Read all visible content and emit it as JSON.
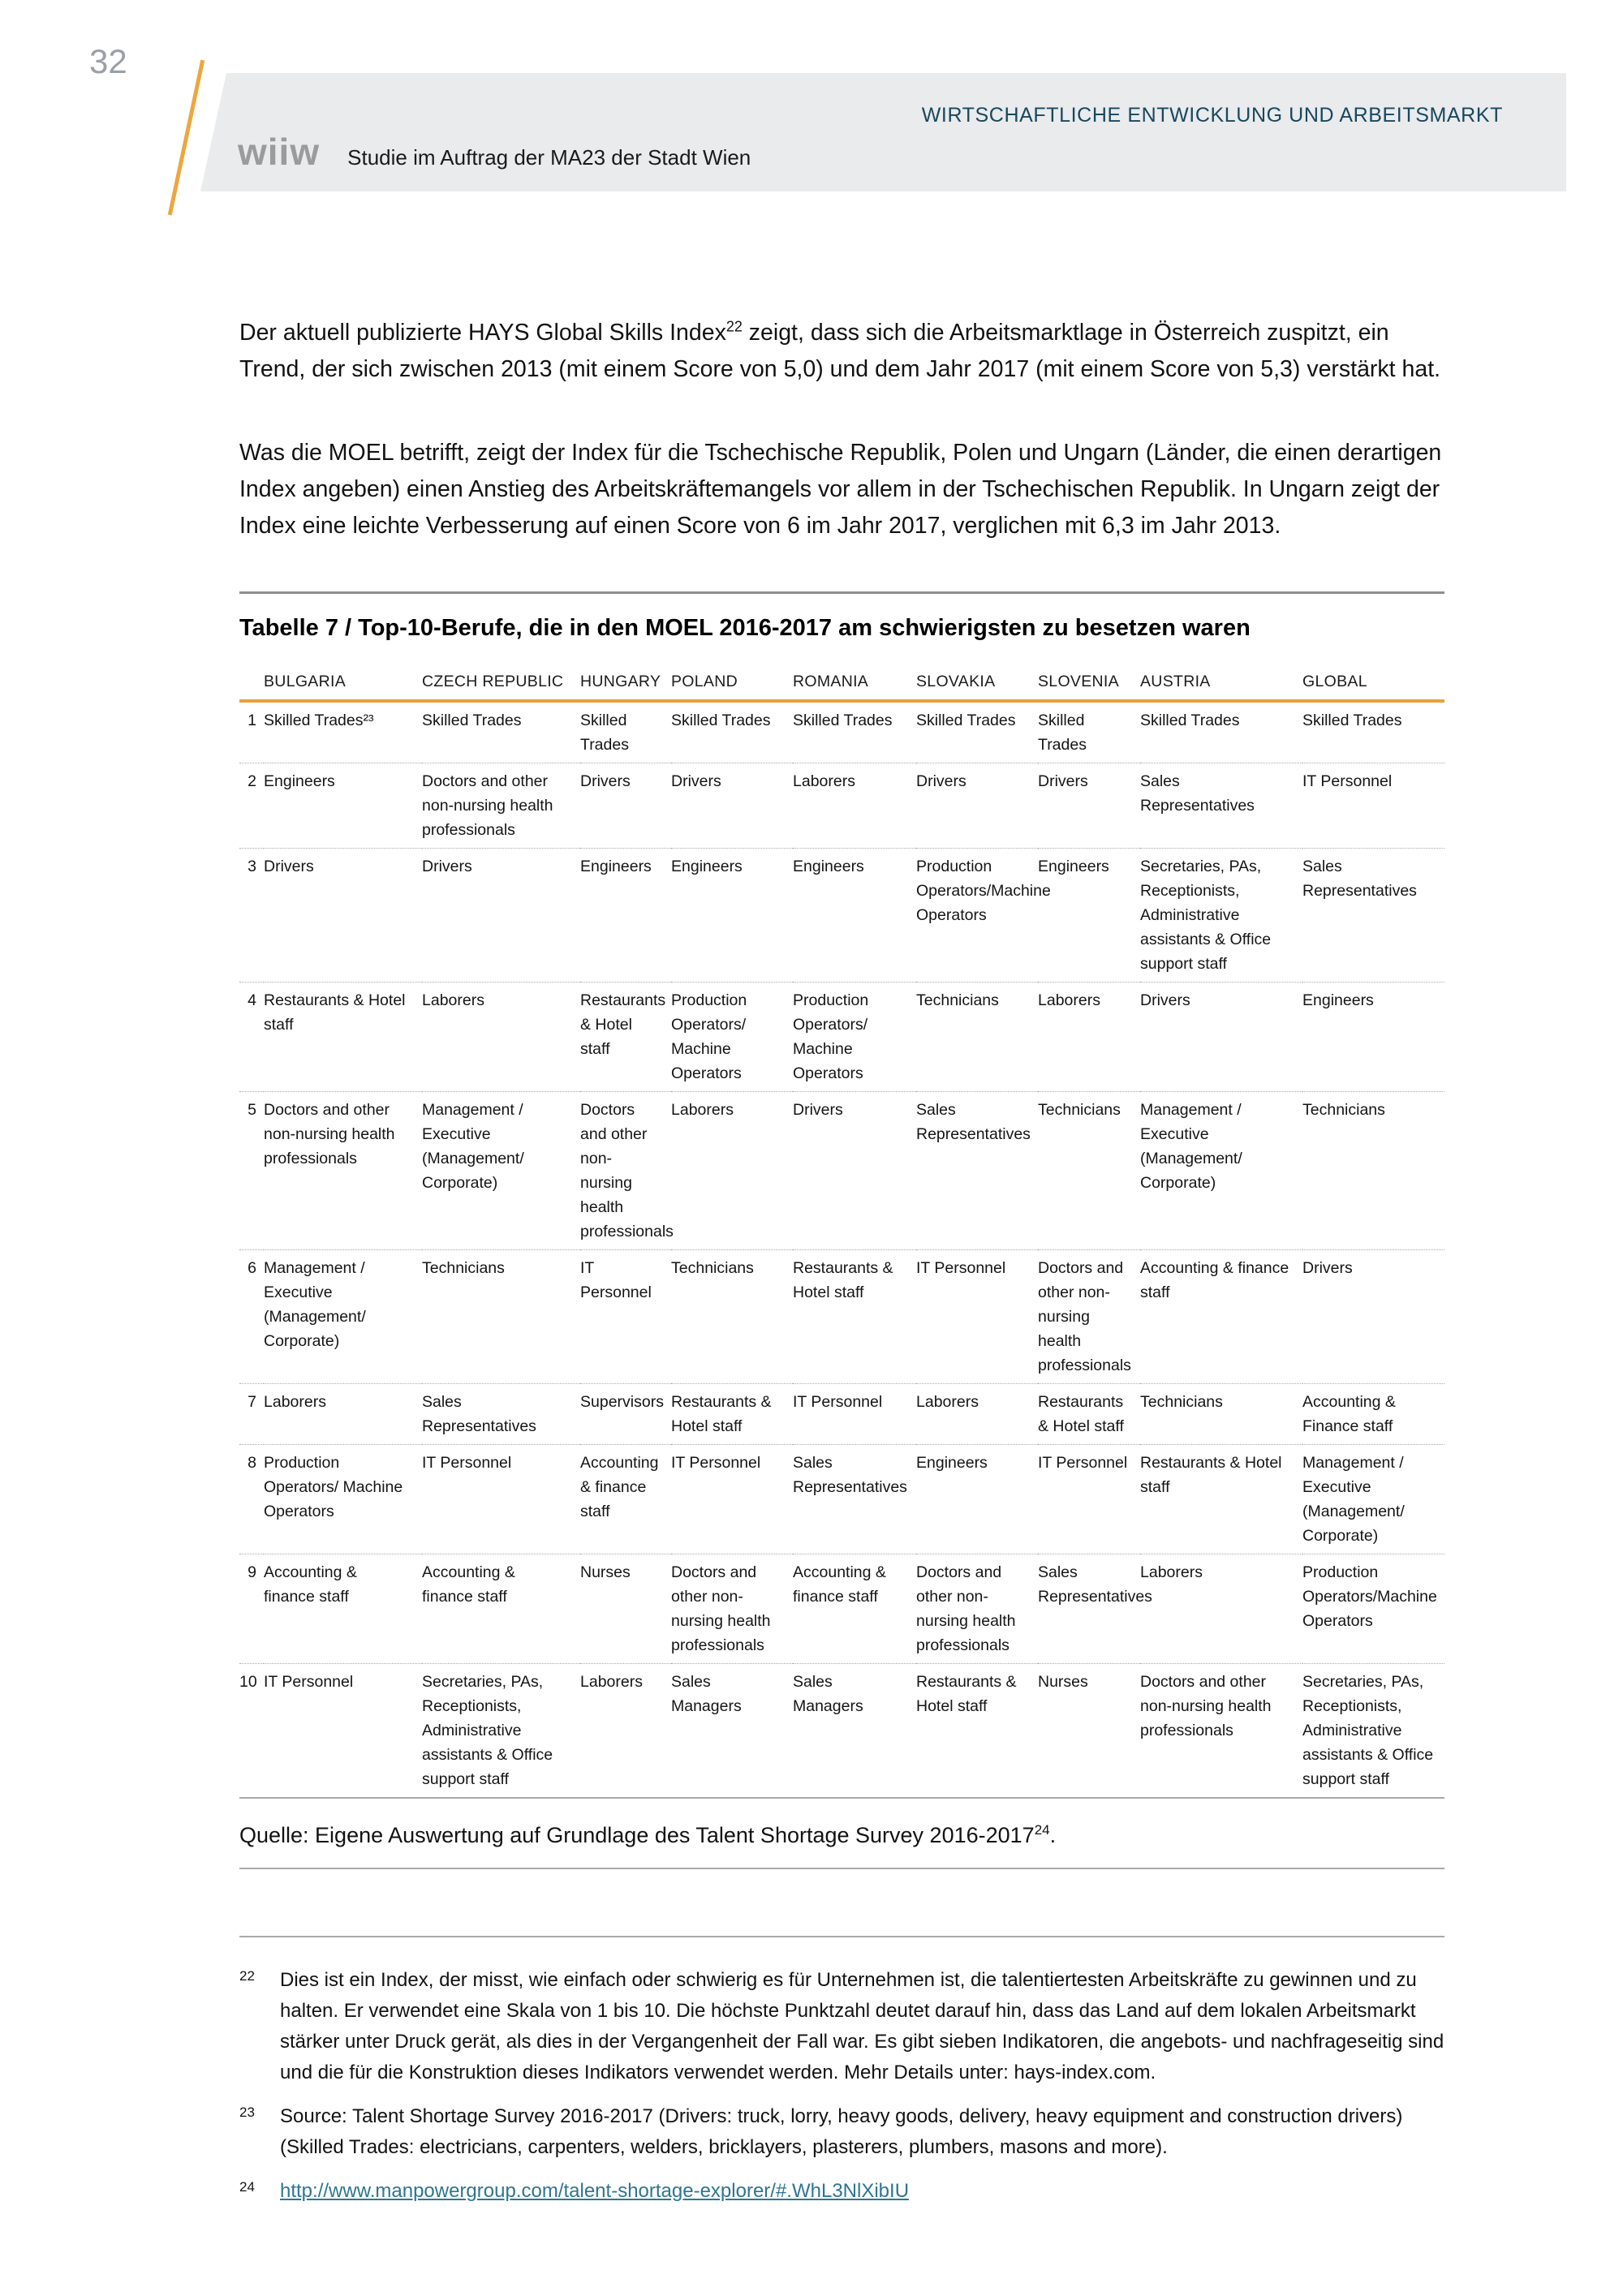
{
  "page": {
    "number": "32",
    "header_title": "WIRTSCHAFTLICHE ENTWICKLUNG UND ARBEITSMARKT",
    "logo_text": "wiiw",
    "subtitle": "Studie im Auftrag der MA23 der Stadt Wien"
  },
  "paragraphs": {
    "p1_before": "Der aktuell publizierte HAYS Global Skills Index",
    "p1_footnote_ref": "22",
    "p1_after": " zeigt, dass sich die Arbeitsmarktlage in Österreich zuspitzt, ein Trend, der sich zwischen 2013 (mit einem Score von 5,0) und dem Jahr 2017 (mit einem Score von 5,3) verstärkt hat.",
    "p2": "Was die MOEL betrifft, zeigt der Index für die Tschechische Republik, Polen und Ungarn (Länder, die einen derartigen Index angeben) einen Anstieg des Arbeitskräftemangels vor allem in der Tschechischen Republik. In Ungarn zeigt der Index eine leichte Verbesserung auf einen Score von 6 im Jahr 2017, verglichen mit 6,3 im Jahr 2013."
  },
  "table": {
    "title": "Tabelle 7 / Top-10-Berufe, die in den MOEL 2016-2017 am schwierigsten zu besetzen waren",
    "columns": [
      "BULGARIA",
      "CZECH REPUBLIC",
      "HUNGARY",
      "POLAND",
      "ROMANIA",
      "SLOVAKIA",
      "SLOVENIA",
      "AUSTRIA",
      "GLOBAL"
    ],
    "rows": [
      {
        "rank": "1",
        "cells": [
          "Skilled Trades²³",
          "Skilled Trades",
          "Skilled Trades",
          "Skilled Trades",
          "Skilled Trades",
          "Skilled Trades",
          "Skilled Trades",
          "Skilled Trades",
          "Skilled Trades"
        ]
      },
      {
        "rank": "2",
        "cells": [
          "Engineers",
          "Doctors and other non-nursing health professionals",
          "Drivers",
          "Drivers",
          "Laborers",
          "Drivers",
          "Drivers",
          "Sales Representatives",
          "IT Personnel"
        ]
      },
      {
        "rank": "3",
        "cells": [
          "Drivers",
          "Drivers",
          "Engineers",
          "Engineers",
          "Engineers",
          "Production Operators/Machine Operators",
          "Engineers",
          "Secretaries, PAs, Receptionists, Administrative assistants & Office support staff",
          "Sales Representatives"
        ]
      },
      {
        "rank": "4",
        "cells": [
          "Restaurants & Hotel staff",
          "Laborers",
          "Restaurants & Hotel staff",
          "Production Operators/ Machine Operators",
          "Production Operators/ Machine Operators",
          "Technicians",
          "Laborers",
          "Drivers",
          "Engineers"
        ]
      },
      {
        "rank": "5",
        "cells": [
          "Doctors and other non-nursing health professionals",
          "Management / Executive (Management/ Corporate)",
          "Doctors and other non-nursing health professionals",
          "Laborers",
          "Drivers",
          "Sales Representatives",
          "Technicians",
          "Management / Executive (Management/ Corporate)",
          "Technicians"
        ]
      },
      {
        "rank": "6",
        "cells": [
          "Management / Executive (Management/ Corporate)",
          "Technicians",
          "IT Personnel",
          "Technicians",
          "Restaurants & Hotel staff",
          "IT Personnel",
          "Doctors and other non-nursing health professionals",
          "Accounting & finance staff",
          "Drivers"
        ]
      },
      {
        "rank": "7",
        "cells": [
          "Laborers",
          "Sales Representatives",
          "Supervisors",
          "Restaurants & Hotel staff",
          "IT Personnel",
          "Laborers",
          "Restaurants & Hotel staff",
          "Technicians",
          "Accounting & Finance staff"
        ]
      },
      {
        "rank": "8",
        "cells": [
          "Production Operators/ Machine Operators",
          "IT Personnel",
          "Accounting & finance staff",
          "IT Personnel",
          "Sales Representatives",
          "Engineers",
          "IT Personnel",
          "Restaurants & Hotel staff",
          "Management / Executive (Management/ Corporate)"
        ]
      },
      {
        "rank": "9",
        "cells": [
          "Accounting & finance staff",
          "Accounting & finance staff",
          "Nurses",
          "Doctors and other non-nursing health professionals",
          "Accounting & finance staff",
          "Doctors and other non-nursing health professionals",
          "Sales Representatives",
          "Laborers",
          "Production Operators/Machine Operators"
        ]
      },
      {
        "rank": "10",
        "cells": [
          "IT Personnel",
          "Secretaries, PAs, Receptionists, Administrative assistants & Office support staff",
          "Laborers",
          "Sales Managers",
          "Sales Managers",
          "Restaurants & Hotel staff",
          "Nurses",
          "Doctors and other non-nursing health professionals",
          "Secretaries, PAs, Receptionists, Administrative assistants & Office support staff"
        ]
      }
    ]
  },
  "source": {
    "before": "Quelle: Eigene Auswertung auf Grundlage des Talent Shortage Survey 2016-2017",
    "footnote_ref": "24",
    "after": "."
  },
  "footnotes": [
    {
      "marker": "22",
      "text": "Dies ist ein Index, der misst, wie einfach oder schwierig es für Unternehmen ist, die talentiertesten Arbeitskräfte zu gewinnen und zu halten. Er verwendet eine Skala von 1 bis 10. Die höchste Punktzahl deutet darauf hin, dass das Land auf dem lokalen Arbeitsmarkt stärker unter Druck gerät, als dies in der Vergangenheit der Fall war. Es gibt sieben Indikatoren, die angebots- und nachfrageseitig sind und die für die Konstruktion dieses Indikators verwendet werden. Mehr Details unter: hays-index.com."
    },
    {
      "marker": "23",
      "text": "Source: Talent Shortage Survey 2016-2017 (Drivers: truck, lorry, heavy goods, delivery, heavy equipment and construction drivers) (Skilled Trades: electricians, carpenters, welders, bricklayers, plasterers, plumbers, masons and more)."
    },
    {
      "marker": "24",
      "text": "http://www.manpowergroup.com/talent-shortage-explorer/#.WhL3NlXibIU"
    }
  ],
  "colors": {
    "accent_orange": "#E9A13B",
    "header_blue": "#19475F",
    "banner_gray": "#E9EBEC",
    "link_blue": "#2D7592"
  }
}
